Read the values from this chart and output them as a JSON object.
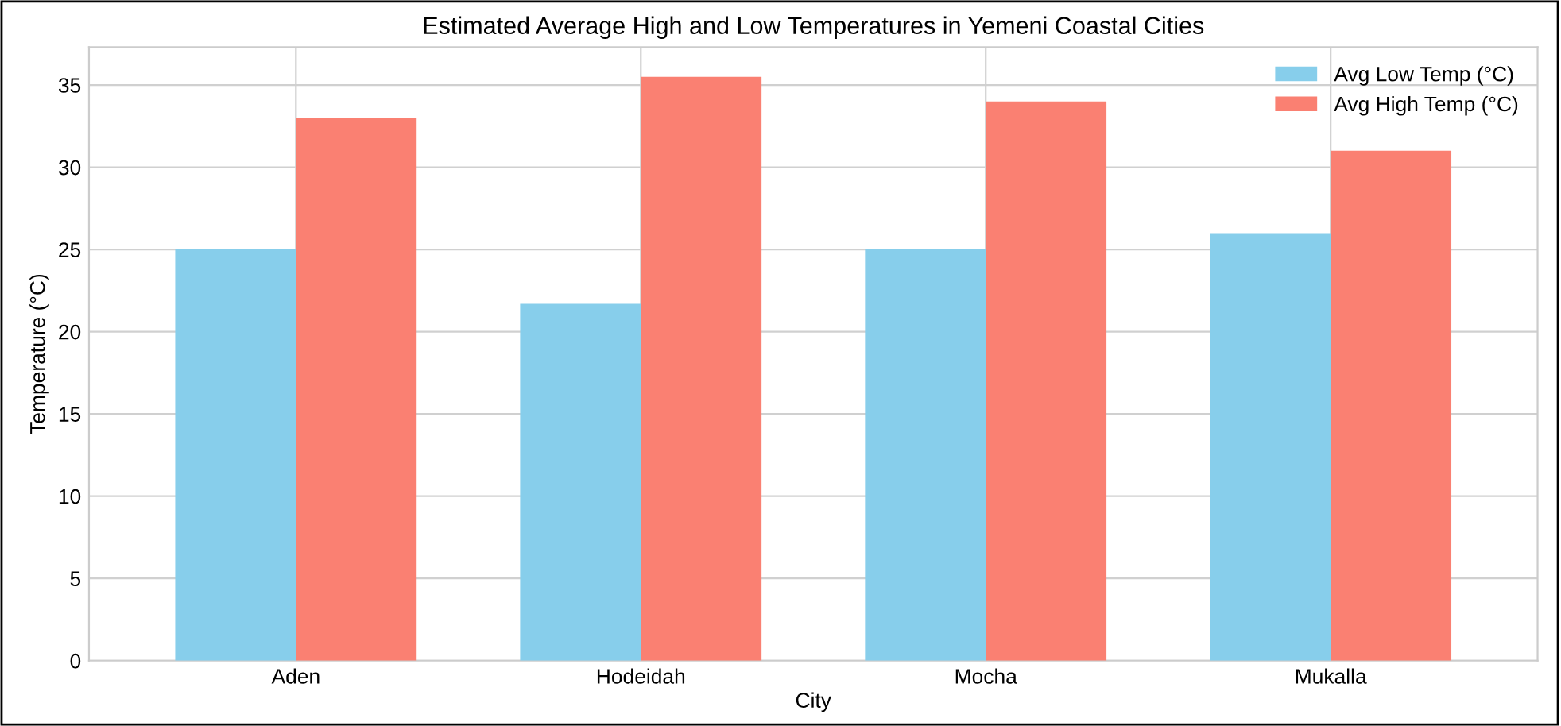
{
  "chart_data": {
    "type": "bar",
    "title": "Estimated Average High and Low Temperatures in Yemeni Coastal Cities",
    "xlabel": "City",
    "ylabel": "Temperature (°C)",
    "categories": [
      "Aden",
      "Hodeidah",
      "Mocha",
      "Mukalla"
    ],
    "series": [
      {
        "name": "Avg Low Temp (°C)",
        "color": "#87ceeb",
        "values": [
          25,
          21.7,
          25,
          26
        ]
      },
      {
        "name": "Avg High Temp (°C)",
        "color": "#fa8072",
        "values": [
          33,
          35.5,
          34,
          31
        ]
      }
    ],
    "ylim": [
      0,
      37.3
    ],
    "yticks": [
      0,
      5,
      10,
      15,
      20,
      25,
      30,
      35
    ],
    "grid": true,
    "legend": "top right"
  }
}
